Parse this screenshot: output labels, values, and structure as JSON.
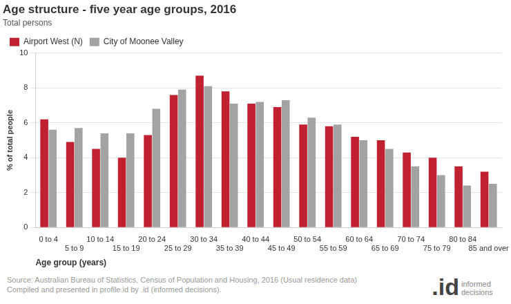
{
  "chart_data": {
    "type": "bar",
    "title": "Age structure - five year age groups, 2016",
    "subtitle": "Total persons",
    "x_label": "Age group (years)",
    "y_label": "% of total people",
    "categories": [
      "0 to 4",
      "5 to 9",
      "10 to 14",
      "15 to 19",
      "20 to 24",
      "25 to 29",
      "30 to 34",
      "35 to 39",
      "40 to 44",
      "45 to 49",
      "50 to 54",
      "55 to 59",
      "60 to 64",
      "65 to 69",
      "70 to 74",
      "75 to 79",
      "80 to 84",
      "85 and over"
    ],
    "series": [
      {
        "name": "Airport West (N)",
        "color": "#c0202f",
        "values": [
          6.2,
          4.9,
          4.5,
          4.0,
          5.3,
          7.6,
          8.7,
          7.8,
          7.1,
          6.9,
          5.9,
          5.8,
          5.2,
          5.0,
          4.3,
          4.0,
          3.5,
          3.2
        ]
      },
      {
        "name": "City of Moonee Valley",
        "color": "#a3a3a3",
        "values": [
          5.6,
          5.7,
          5.4,
          5.4,
          6.8,
          7.9,
          8.1,
          7.1,
          7.2,
          7.3,
          6.3,
          5.9,
          5.0,
          4.5,
          3.5,
          3.0,
          2.4,
          2.5
        ]
      }
    ],
    "ylim": [
      0,
      10
    ],
    "yticks": [
      0,
      2,
      4,
      6,
      8,
      10
    ],
    "grid": true,
    "legend": "top-left",
    "source": [
      "Source: Australian Bureau of Statistics, Census of Population and Housing, 2016 (Usual residence data)",
      "Compiled and presented in profile.id by .id (informed decisions)."
    ],
    "brand": [
      ".id",
      "informed decisions"
    ]
  }
}
